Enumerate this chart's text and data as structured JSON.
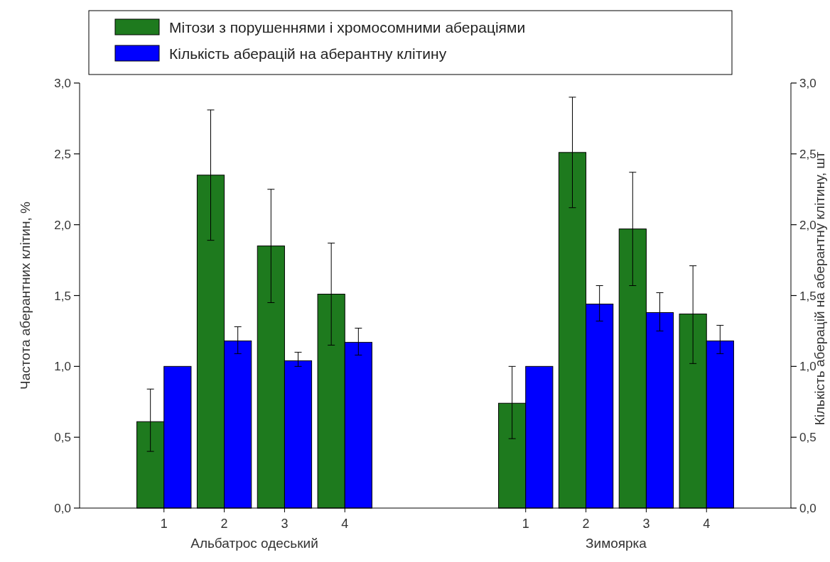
{
  "chart_data": {
    "type": "bar",
    "ylabel": "Частота аберантних клітин, %",
    "y2label": "Кількість аберацій на аберантну клітину, шт",
    "categories": [
      "1",
      "2",
      "3",
      "4",
      null,
      null,
      "1",
      "2",
      "3",
      "4"
    ],
    "series": [
      {
        "name": "Мітози з порушеннями і хромосомними абераціями",
        "color": "#1e7a1e",
        "values": [
          0.61,
          2.35,
          1.85,
          1.51,
          null,
          null,
          0.74,
          2.51,
          1.97,
          1.37
        ],
        "errors": [
          [
            0.4,
            0.84
          ],
          [
            1.89,
            2.81
          ],
          [
            1.45,
            2.25
          ],
          [
            1.15,
            1.87
          ],
          null,
          null,
          [
            0.49,
            1.0
          ],
          [
            2.12,
            2.9
          ],
          [
            1.57,
            2.37
          ],
          [
            1.02,
            1.71
          ]
        ]
      },
      {
        "name": "Кількість аберацій на аберантну клітину",
        "color": "#0000ff",
        "axis": "y2",
        "values": [
          1.0,
          1.18,
          1.04,
          1.17,
          null,
          null,
          1.0,
          1.44,
          1.38,
          1.18
        ],
        "errors": [
          null,
          [
            1.09,
            1.28
          ],
          [
            1.0,
            1.1
          ],
          [
            1.08,
            1.27
          ],
          null,
          null,
          null,
          [
            1.32,
            1.57
          ],
          [
            1.25,
            1.52
          ],
          [
            1.09,
            1.29
          ]
        ]
      }
    ],
    "annotations": [
      "Альбатрос одеський",
      "Зимоярка"
    ],
    "ylim": [
      0,
      3
    ],
    "yticks": [
      {
        "value": 0,
        "label": "0,0"
      },
      {
        "value": 0.5,
        "label": "0,5"
      },
      {
        "value": 1,
        "label": "1,0"
      },
      {
        "value": 1.5,
        "label": "1,5"
      },
      {
        "value": 2,
        "label": "2,0"
      },
      {
        "value": 2.5,
        "label": "2,5"
      },
      {
        "value": 3,
        "label": "3,0"
      }
    ],
    "y2lim": [
      0,
      3
    ],
    "y2ticks": [
      {
        "value": 0,
        "label": "0,0"
      },
      {
        "value": 0.5,
        "label": "0,5"
      },
      {
        "value": 1,
        "label": "1,0"
      },
      {
        "value": 1.5,
        "label": "1,5"
      },
      {
        "value": 2,
        "label": "2,0"
      },
      {
        "value": 2.5,
        "label": "2,5"
      },
      {
        "value": 3,
        "label": "3,0"
      }
    ],
    "legend": "top",
    "grid": false
  }
}
